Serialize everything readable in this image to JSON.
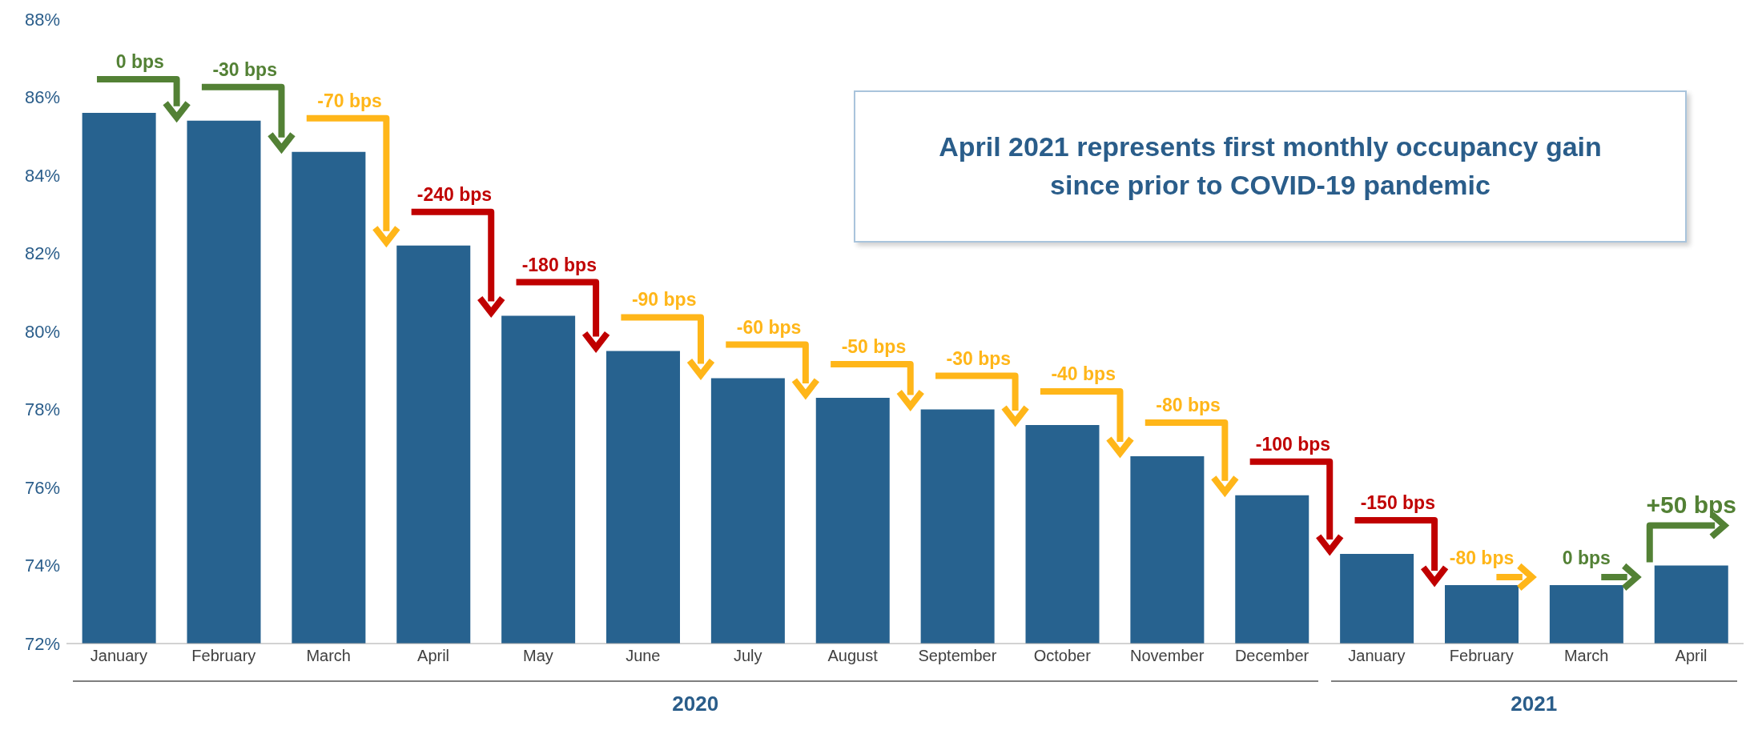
{
  "chart_data": {
    "type": "bar",
    "categories": [
      "January",
      "February",
      "March",
      "April",
      "May",
      "June",
      "July",
      "August",
      "September",
      "October",
      "November",
      "December",
      "January",
      "February",
      "March",
      "April"
    ],
    "values": [
      85.6,
      85.4,
      84.6,
      82.2,
      80.4,
      79.5,
      78.8,
      78.3,
      78.0,
      77.6,
      76.8,
      75.8,
      74.3,
      73.5,
      73.5,
      74.0
    ],
    "color": "#27628f",
    "ylim": [
      72,
      88
    ],
    "yticks": [
      {
        "value": 72,
        "label": "72%"
      },
      {
        "value": 74,
        "label": "74%"
      },
      {
        "value": 76,
        "label": "76%"
      },
      {
        "value": 78,
        "label": "78%"
      },
      {
        "value": 80,
        "label": "80%"
      },
      {
        "value": 82,
        "label": "82%"
      },
      {
        "value": 84,
        "label": "84%"
      },
      {
        "value": 86,
        "label": "86%"
      },
      {
        "value": 88,
        "label": "88%"
      }
    ],
    "grid": false,
    "legend": false,
    "annotations": [
      "April 2021 represents first monthly occupancy gain since prior to COVID-19 pandemic",
      "2020",
      "2021",
      "0 bps",
      "-30 bps",
      "-70 bps",
      "-240 bps",
      "-180 bps",
      "-90 bps",
      "-60 bps",
      "-50 bps",
      "-30 bps",
      "-40 bps",
      "-80 bps",
      "-100 bps",
      "-150 bps",
      "-80 bps",
      "0 bps",
      "+50 bps"
    ]
  }
}
